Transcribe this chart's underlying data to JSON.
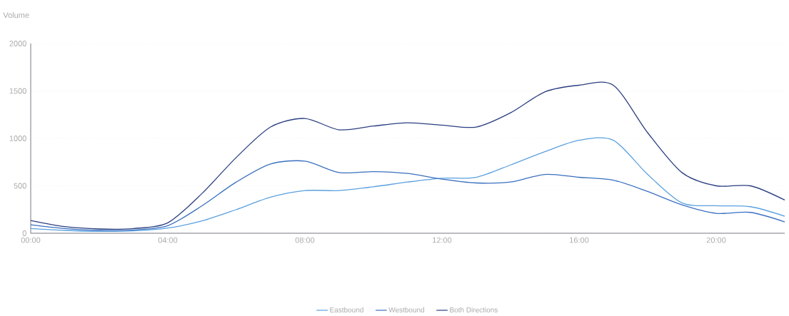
{
  "chart_data": {
    "type": "line",
    "ylabel": "Volume",
    "x": [
      0,
      1,
      2,
      3,
      4,
      5,
      6,
      7,
      8,
      9,
      10,
      11,
      12,
      13,
      14,
      15,
      16,
      17,
      18,
      19,
      20,
      21,
      22
    ],
    "series": [
      {
        "name": "Eastbound",
        "color": "#5aa0e0",
        "values": [
          50,
          30,
          20,
          25,
          55,
          130,
          250,
          380,
          450,
          450,
          490,
          540,
          580,
          590,
          720,
          860,
          980,
          980,
          620,
          320,
          290,
          280,
          180
        ]
      },
      {
        "name": "Westbound",
        "color": "#3a70c0",
        "values": [
          90,
          50,
          30,
          35,
          80,
          290,
          540,
          730,
          760,
          640,
          650,
          630,
          570,
          530,
          540,
          620,
          590,
          560,
          440,
          300,
          210,
          220,
          120
        ]
      },
      {
        "name": "Both Directions",
        "color": "#2b3f80",
        "values": [
          135,
          70,
          45,
          50,
          110,
          420,
          800,
          1120,
          1210,
          1090,
          1130,
          1165,
          1140,
          1120,
          1270,
          1490,
          1560,
          1560,
          1060,
          640,
          500,
          500,
          350
        ]
      }
    ],
    "xlim": [
      0,
      22
    ],
    "xticks": [
      {
        "value": 0,
        "label": "00:00"
      },
      {
        "value": 4,
        "label": "04:00"
      },
      {
        "value": 8,
        "label": "08:00"
      },
      {
        "value": 12,
        "label": "12:00"
      },
      {
        "value": 16,
        "label": "16:00"
      },
      {
        "value": 20,
        "label": "20:00"
      }
    ],
    "ylim": [
      0,
      2000
    ],
    "yticks": [
      0,
      500,
      1000,
      1500,
      2000
    ],
    "grid": "y",
    "legend": "bottom"
  }
}
